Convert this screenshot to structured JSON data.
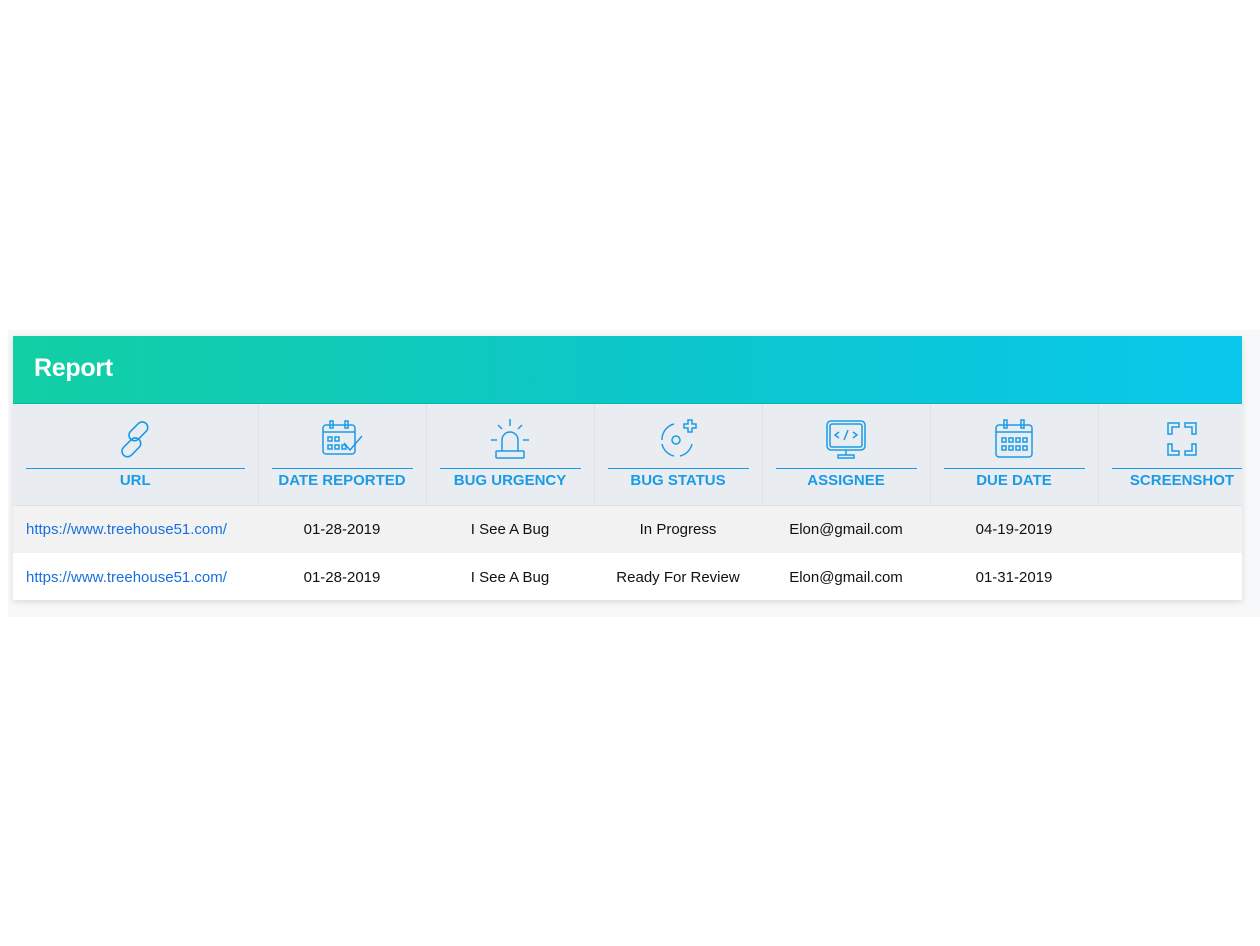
{
  "report": {
    "title": "Report",
    "accent": "#1a9be6",
    "columns": [
      {
        "label": "URL",
        "icon": "link-icon"
      },
      {
        "label": "DATE REPORTED",
        "icon": "calendar-check-icon"
      },
      {
        "label": "BUG URGENCY",
        "icon": "siren-icon"
      },
      {
        "label": "BUG STATUS",
        "icon": "status-target-icon"
      },
      {
        "label": "ASSIGNEE",
        "icon": "monitor-code-icon"
      },
      {
        "label": "DUE DATE",
        "icon": "calendar-icon"
      },
      {
        "label": "SCREENSHOT",
        "icon": "screenshot-frame-icon"
      }
    ],
    "rows": [
      {
        "url": "https://www.treehouse51.com/",
        "date_reported": "01-28-2019",
        "urgency": "I See A Bug",
        "status": "In Progress",
        "assignee": "Elon@gmail.com",
        "due_date": "04-19-2019",
        "screenshot": ""
      },
      {
        "url": "https://www.treehouse51.com/",
        "date_reported": "01-28-2019",
        "urgency": "I See A Bug",
        "status": "Ready For Review",
        "assignee": "Elon@gmail.com",
        "due_date": "01-31-2019",
        "screenshot": ""
      }
    ]
  }
}
